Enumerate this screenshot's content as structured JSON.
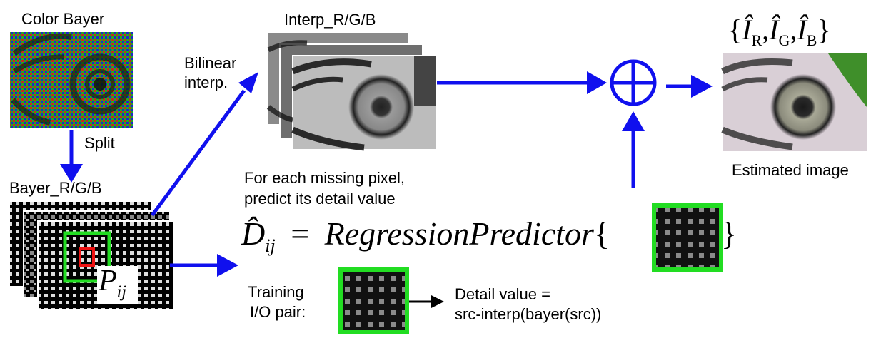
{
  "labels": {
    "color_bayer": "Color Bayer",
    "split": "Split",
    "bayer_rgb": "Bayer_R/G/B",
    "interp_rgb": "Interp_R/G/B",
    "bilinear_1": "Bilinear",
    "bilinear_2": "interp.",
    "estimated_image": "Estimated image",
    "missing_1": "For each missing pixel,",
    "missing_2": "predict its detail value",
    "training_1": "Training",
    "training_2": "I/O pair:",
    "detail_1": "Detail value =",
    "detail_2": "src-interp(bayer(src))"
  },
  "math": {
    "estimate_open": "{",
    "estimate_i": "Î",
    "sub_r": "R",
    "sub_g": "G",
    "sub_b": "B",
    "estimate_close": "}",
    "d_hat": "D̂",
    "d_sub": "ij",
    "equals": "=",
    "predictor": "RegressionPredictor",
    "brace_open": "{",
    "brace_close": "}",
    "p": "P",
    "p_sub": "ij"
  },
  "colors": {
    "arrow": "#1010ee",
    "patch_box": "#22dd22",
    "pixel_box": "#ee1111",
    "black_arrow": "#000000"
  }
}
